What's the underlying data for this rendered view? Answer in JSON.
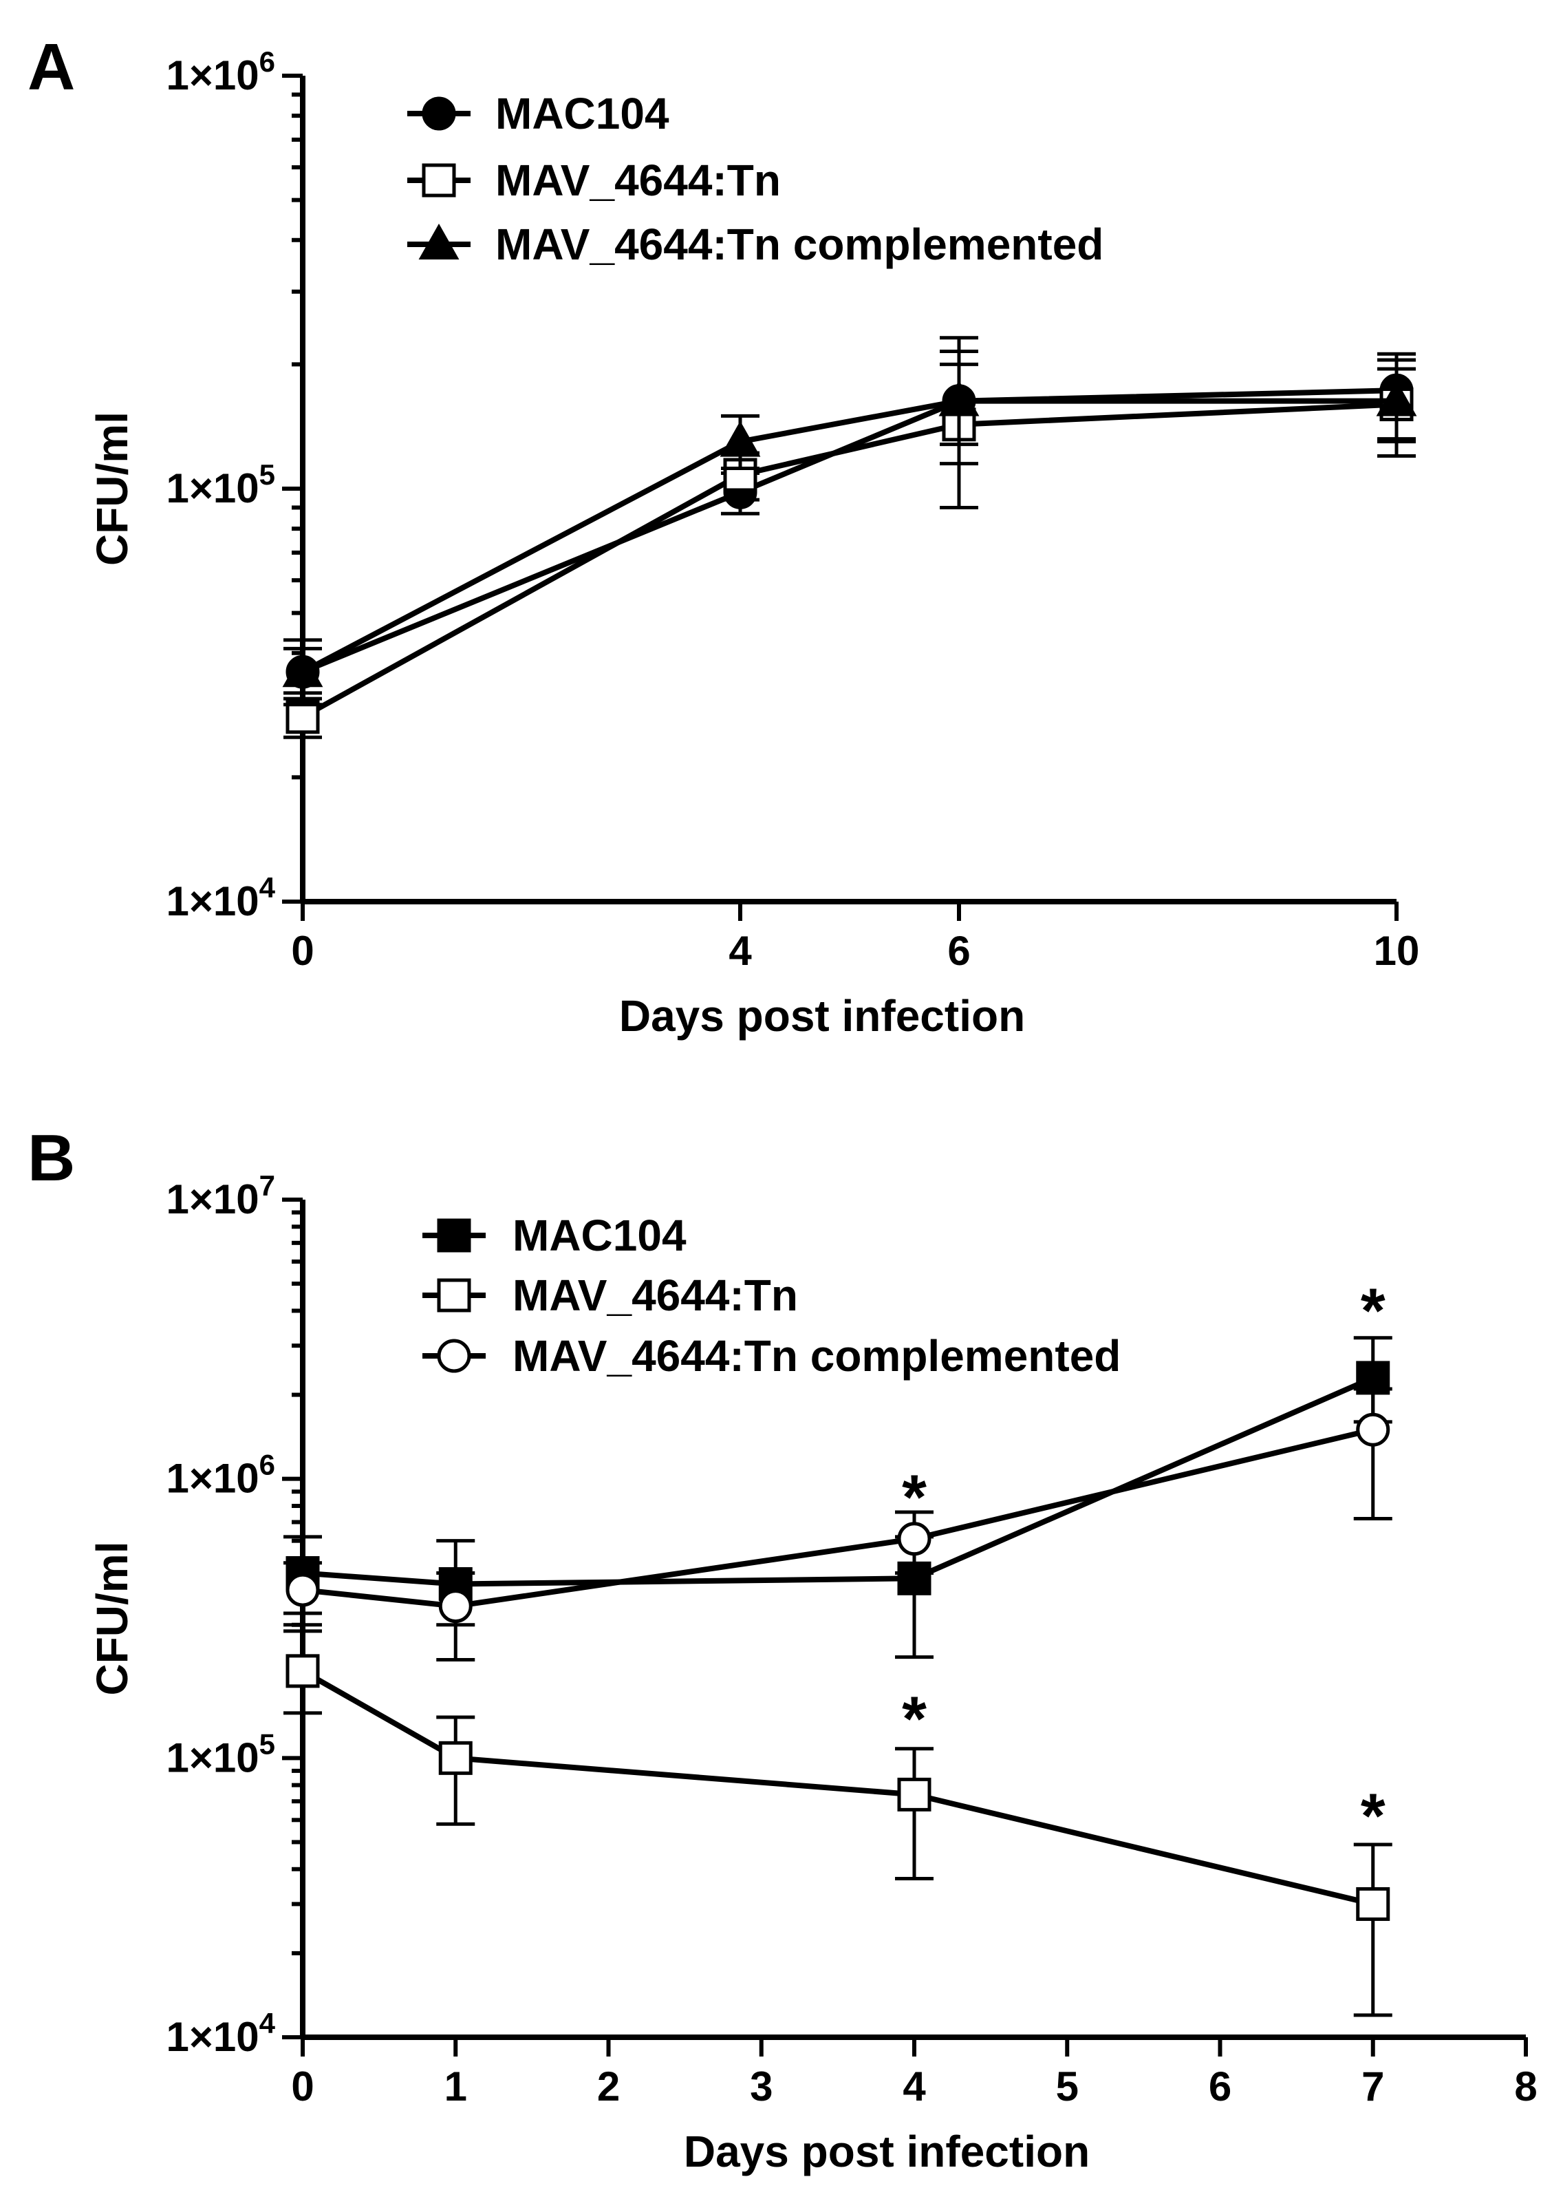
{
  "chart_data": [
    {
      "panel": "A",
      "type": "line",
      "title": "",
      "xlabel": "Days post infection",
      "ylabel": "CFU/ml",
      "yscale": "log",
      "xlim": [
        0,
        10
      ],
      "ylim": [
        10000,
        1000000
      ],
      "xticks": [
        0,
        4,
        6,
        10
      ],
      "xtick_labels": [
        "0",
        "4",
        "6",
        "10"
      ],
      "yticks": [
        10000,
        100000,
        1000000
      ],
      "ytick_labels": [
        {
          "base": "1×10",
          "exp": "4"
        },
        {
          "base": "1×10",
          "exp": "5"
        },
        {
          "base": "1×10",
          "exp": "6"
        }
      ],
      "legend_position": "top-left",
      "series": [
        {
          "name": "MAC104",
          "marker": "filled-circle",
          "x": [
            0,
            4,
            6,
            10
          ],
          "values": [
            36000,
            98000,
            163000,
            173000
          ],
          "err_low": [
            31000,
            87000,
            128000,
            132000
          ],
          "err_high": [
            41000,
            109000,
            215000,
            205000
          ]
        },
        {
          "name": "MAV_4644:Tn",
          "marker": "open-square",
          "x": [
            0,
            4,
            6,
            10
          ],
          "values": [
            28000,
            108000,
            143000,
            160000
          ],
          "err_low": [
            25000,
            94000,
            90000,
            120000
          ],
          "err_high": [
            32000,
            122000,
            200000,
            195000
          ]
        },
        {
          "name": "MAV_4644:Tn complemented",
          "marker": "filled-triangle",
          "x": [
            0,
            4,
            6,
            10
          ],
          "values": [
            36000,
            130000,
            163000,
            163000
          ],
          "err_low": [
            30000,
            112000,
            115000,
            130000
          ],
          "err_high": [
            43000,
            150000,
            232000,
            212000
          ]
        }
      ],
      "annotations": []
    },
    {
      "panel": "B",
      "type": "line",
      "title": "",
      "xlabel": "Days post infection",
      "ylabel": "CFU/ml",
      "yscale": "log",
      "xlim": [
        0,
        8
      ],
      "ylim": [
        10000,
        10000000
      ],
      "xticks": [
        0,
        1,
        2,
        3,
        4,
        5,
        6,
        7,
        8
      ],
      "xtick_labels": [
        "0",
        "1",
        "2",
        "3",
        "4",
        "5",
        "6",
        "7",
        "8"
      ],
      "yticks": [
        10000,
        100000,
        1000000,
        10000000
      ],
      "ytick_labels": [
        {
          "base": "1×10",
          "exp": "4"
        },
        {
          "base": "1×10",
          "exp": "5"
        },
        {
          "base": "1×10",
          "exp": "6"
        },
        {
          "base": "1×10",
          "exp": "7"
        }
      ],
      "legend_position": "top-left",
      "series": [
        {
          "name": "MAC104",
          "marker": "filled-square",
          "x": [
            0,
            1,
            4,
            7
          ],
          "values": [
            460000,
            420000,
            440000,
            2300000
          ],
          "err_low": [
            330000,
            300000,
            230000,
            1600000
          ],
          "err_high": [
            620000,
            600000,
            620000,
            3200000
          ]
        },
        {
          "name": "MAV_4644:Tn",
          "marker": "open-square",
          "x": [
            0,
            1,
            4,
            7
          ],
          "values": [
            205000,
            100000,
            74000,
            30000
          ],
          "err_low": [
            145000,
            58000,
            37000,
            12000
          ],
          "err_high": [
            285000,
            140000,
            108000,
            49000
          ]
        },
        {
          "name": "MAV_4644:Tn complemented",
          "marker": "open-circle",
          "x": [
            0,
            1,
            4,
            7
          ],
          "values": [
            400000,
            350000,
            610000,
            1500000
          ],
          "err_low": [
            300000,
            225000,
            460000,
            720000
          ],
          "err_high": [
            500000,
            460000,
            760000,
            2100000
          ]
        }
      ],
      "annotations": [
        {
          "text": "*",
          "x": 4,
          "y": 900000
        },
        {
          "text": "*",
          "x": 4,
          "y": 145000
        },
        {
          "text": "*",
          "x": 7,
          "y": 4200000
        },
        {
          "text": "*",
          "x": 7,
          "y": 65000
        }
      ]
    }
  ]
}
